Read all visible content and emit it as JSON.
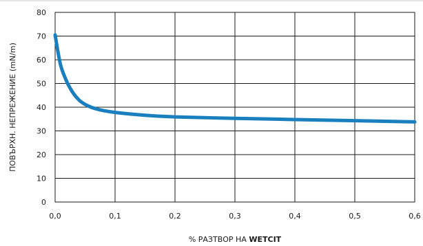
{
  "chart_data": {
    "type": "line",
    "xlabel_prefix": "% РАЗТВОР НА ",
    "xlabel_bold": "WETCIT",
    "ylabel": "ПОВЪРХН. НЕПРЕЖЕНИЕ (mN/m)",
    "xlim": [
      0,
      0.6
    ],
    "ylim": [
      0,
      80
    ],
    "x_ticks": [
      0,
      0.1,
      0.2,
      0.3,
      0.4,
      0.5,
      0.6
    ],
    "x_tick_labels": [
      "0,0",
      "0,1",
      "0,2",
      "0,3",
      "0,4",
      "0,5",
      "0,6"
    ],
    "y_ticks": [
      0,
      10,
      20,
      30,
      40,
      50,
      60,
      70,
      80
    ],
    "y_tick_labels": [
      "0",
      "10",
      "20",
      "30",
      "40",
      "50",
      "60",
      "70",
      "80"
    ],
    "grid": "both",
    "legend": "none",
    "line_color": "#1a7fbf",
    "series": [
      {
        "x": [
          0.0,
          0.005,
          0.01,
          0.02,
          0.03,
          0.04,
          0.05,
          0.06,
          0.07,
          0.08,
          0.1,
          0.15,
          0.2,
          0.3,
          0.4,
          0.5,
          0.6
        ],
        "y": [
          70.5,
          63,
          57,
          50.5,
          46,
          43,
          41.2,
          40,
          39.2,
          38.6,
          37.8,
          36.6,
          35.9,
          35.3,
          34.8,
          34.3,
          33.8
        ]
      }
    ]
  }
}
